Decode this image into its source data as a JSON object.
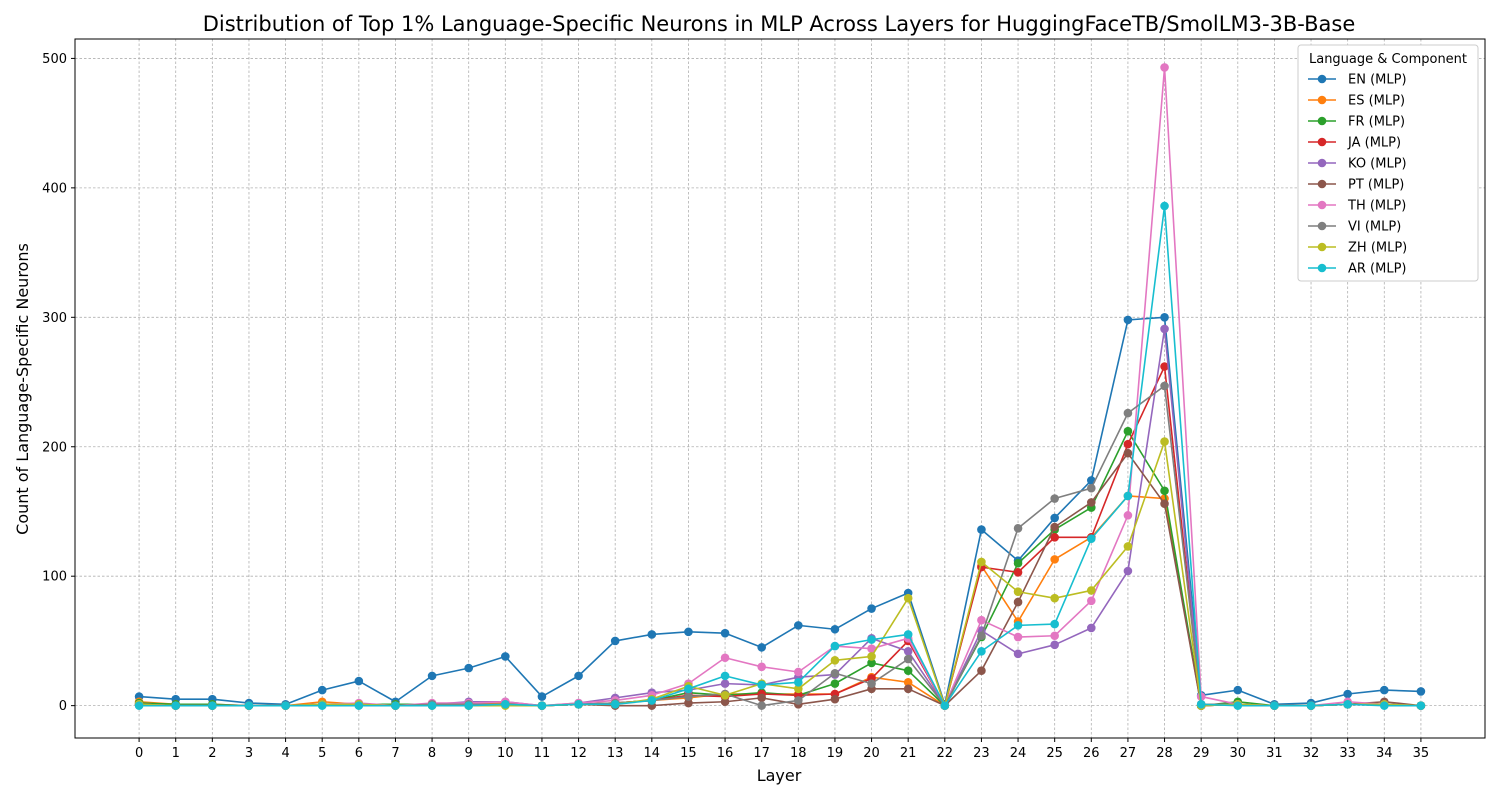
{
  "chart_data": {
    "type": "line",
    "title": "Distribution of Top 1% Language-Specific Neurons in MLP Across Layers for HuggingFaceTB/SmolLM3-3B-Base",
    "xlabel": "Layer",
    "ylabel": "Count of Language-Specific Neurons",
    "x": [
      0,
      1,
      2,
      3,
      4,
      5,
      6,
      7,
      8,
      9,
      10,
      11,
      12,
      13,
      14,
      15,
      16,
      17,
      18,
      19,
      20,
      21,
      22,
      23,
      24,
      25,
      26,
      27,
      28,
      29,
      30,
      31,
      32,
      33,
      34,
      35
    ],
    "x_ticks": [
      "0",
      "1",
      "2",
      "3",
      "4",
      "5",
      "6",
      "7",
      "8",
      "9",
      "10",
      "11",
      "12",
      "13",
      "14",
      "15",
      "16",
      "17",
      "18",
      "19",
      "20",
      "21",
      "22",
      "23",
      "24",
      "25",
      "26",
      "27",
      "28",
      "29",
      "30",
      "31",
      "32",
      "33",
      "34",
      "35"
    ],
    "xlim": [
      -1.75,
      36.75
    ],
    "ylim": [
      -25,
      515
    ],
    "y_ticks": [
      0,
      100,
      200,
      300,
      400,
      500
    ],
    "y_tick_labels": [
      "0",
      "100",
      "200",
      "300",
      "400",
      "500"
    ],
    "grid": true,
    "legend_title": "Language & Component",
    "legend_position": "top-right",
    "series": [
      {
        "name": "EN (MLP)",
        "color": "#1f77b4",
        "values": [
          7,
          5,
          5,
          2,
          1,
          12,
          19,
          3,
          23,
          29,
          38,
          7,
          23,
          50,
          55,
          57,
          56,
          45,
          62,
          59,
          75,
          87,
          1,
          136,
          112,
          145,
          174,
          298,
          300,
          8,
          12,
          1,
          2,
          9,
          12,
          11
        ]
      },
      {
        "name": "ES (MLP)",
        "color": "#ff7f0e",
        "values": [
          3,
          1,
          1,
          0,
          0,
          3,
          1,
          1,
          1,
          1,
          2,
          0,
          1,
          2,
          4,
          6,
          9,
          9,
          9,
          9,
          22,
          18,
          0,
          108,
          65,
          113,
          130,
          162,
          160,
          0,
          1,
          0,
          0,
          1,
          1,
          0
        ]
      },
      {
        "name": "FR (MLP)",
        "color": "#2ca02c",
        "values": [
          2,
          1,
          1,
          0,
          0,
          1,
          1,
          1,
          1,
          1,
          1,
          0,
          1,
          2,
          4,
          10,
          8,
          10,
          8,
          17,
          33,
          27,
          0,
          53,
          110,
          136,
          153,
          212,
          166,
          0,
          3,
          0,
          0,
          1,
          1,
          0
        ]
      },
      {
        "name": "JA (MLP)",
        "color": "#d62728",
        "values": [
          1,
          0,
          0,
          0,
          0,
          1,
          1,
          0,
          1,
          1,
          1,
          0,
          1,
          2,
          4,
          8,
          7,
          9,
          8,
          9,
          21,
          50,
          0,
          107,
          103,
          130,
          130,
          202,
          262,
          0,
          1,
          0,
          0,
          1,
          1,
          0
        ]
      },
      {
        "name": "KO (MLP)",
        "color": "#9467bd",
        "values": [
          1,
          0,
          0,
          0,
          0,
          1,
          1,
          0,
          1,
          3,
          3,
          0,
          2,
          6,
          10,
          12,
          17,
          16,
          22,
          24,
          52,
          42,
          0,
          58,
          40,
          47,
          60,
          104,
          291,
          1,
          1,
          0,
          0,
          1,
          1,
          0
        ]
      },
      {
        "name": "PT (MLP)",
        "color": "#8c564b",
        "values": [
          1,
          0,
          0,
          0,
          0,
          1,
          1,
          0,
          1,
          1,
          1,
          0,
          1,
          0,
          0,
          2,
          3,
          6,
          1,
          5,
          13,
          13,
          0,
          27,
          80,
          138,
          157,
          195,
          156,
          0,
          1,
          0,
          0,
          1,
          3,
          0
        ]
      },
      {
        "name": "TH (MLP)",
        "color": "#e377c2",
        "values": [
          1,
          0,
          0,
          0,
          0,
          1,
          2,
          0,
          2,
          2,
          3,
          0,
          2,
          4,
          8,
          17,
          37,
          30,
          26,
          46,
          44,
          52,
          0,
          66,
          53,
          54,
          81,
          147,
          493,
          7,
          1,
          0,
          0,
          3,
          1,
          0
        ]
      },
      {
        "name": "VI (MLP)",
        "color": "#7f7f7f",
        "values": [
          1,
          0,
          0,
          0,
          0,
          1,
          1,
          0,
          1,
          1,
          1,
          0,
          1,
          2,
          4,
          7,
          9,
          0,
          4,
          25,
          17,
          36,
          0,
          54,
          137,
          160,
          168,
          226,
          247,
          1,
          1,
          0,
          0,
          1,
          1,
          0
        ]
      },
      {
        "name": "ZH (MLP)",
        "color": "#bcbd22",
        "values": [
          1,
          0,
          0,
          0,
          0,
          1,
          1,
          0,
          0,
          0,
          0,
          0,
          1,
          1,
          5,
          15,
          8,
          17,
          13,
          35,
          38,
          83,
          0,
          111,
          88,
          83,
          89,
          123,
          204,
          0,
          1,
          0,
          0,
          1,
          1,
          0
        ]
      },
      {
        "name": "AR (MLP)",
        "color": "#17becf",
        "values": [
          0,
          0,
          0,
          0,
          0,
          0,
          0,
          0,
          0,
          0,
          1,
          0,
          1,
          1,
          4,
          13,
          23,
          16,
          18,
          46,
          51,
          55,
          0,
          42,
          62,
          63,
          129,
          162,
          386,
          1,
          0,
          0,
          0,
          1,
          0,
          0
        ]
      }
    ]
  }
}
